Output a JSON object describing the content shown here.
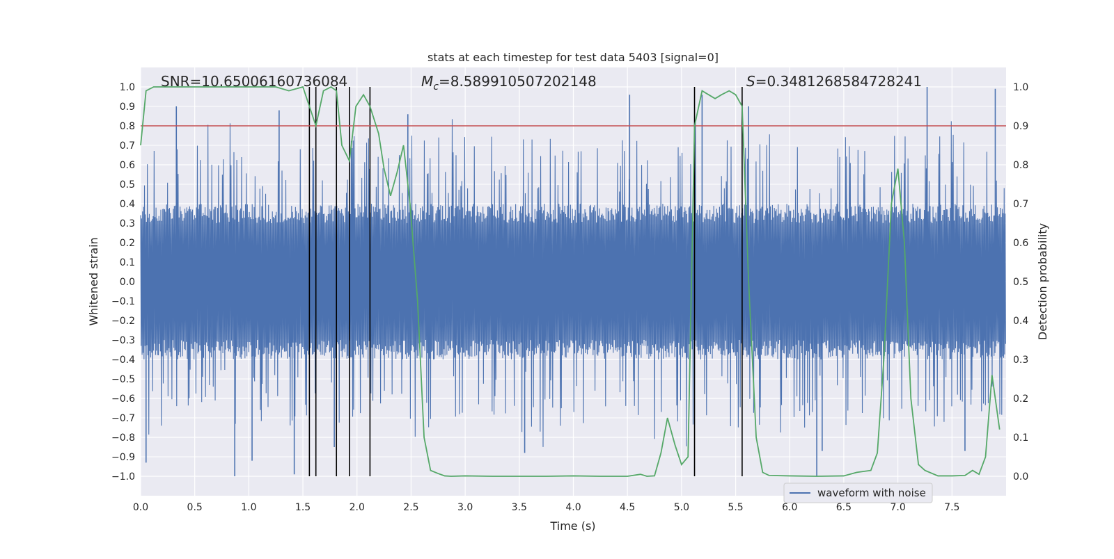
{
  "chart_data": {
    "type": "line",
    "title": "stats at each timestep for test data 5403 [signal=0]",
    "xlabel": "Time (s)",
    "ylabel_left": "Whitened strain",
    "ylabel_right": "Detection probability",
    "xlim": [
      0.0,
      8.0
    ],
    "ylim_left": [
      -1.1,
      1.1
    ],
    "ylim_right": [
      -0.05,
      1.05
    ],
    "grid": true,
    "legend_location": "lower-right",
    "x_ticks": [
      "0.0",
      "0.5",
      "1.0",
      "1.5",
      "2.0",
      "2.5",
      "3.0",
      "3.5",
      "4.0",
      "4.5",
      "5.0",
      "5.5",
      "6.0",
      "6.5",
      "7.0",
      "7.5"
    ],
    "x_tick_values": [
      0.0,
      0.5,
      1.0,
      1.5,
      2.0,
      2.5,
      3.0,
      3.5,
      4.0,
      4.5,
      5.0,
      5.5,
      6.0,
      6.5,
      7.0,
      7.5
    ],
    "y_ticks_left": [
      "1.0",
      "0.9",
      "0.8",
      "0.7",
      "0.6",
      "0.5",
      "0.4",
      "0.3",
      "0.2",
      "0.1",
      "0.0",
      "−0.1",
      "−0.2",
      "−0.3",
      "−0.4",
      "−0.5",
      "−0.6",
      "−0.7",
      "−0.8",
      "−0.9",
      "−1.0"
    ],
    "y_tick_values_left": [
      1.0,
      0.9,
      0.8,
      0.7,
      0.6,
      0.5,
      0.4,
      0.3,
      0.2,
      0.1,
      0.0,
      -0.1,
      -0.2,
      -0.3,
      -0.4,
      -0.5,
      -0.6,
      -0.7,
      -0.8,
      -0.9,
      -1.0
    ],
    "y_ticks_right": [
      "1.0",
      "0.9",
      "0.8",
      "0.7",
      "0.6",
      "0.5",
      "0.4",
      "0.3",
      "0.2",
      "0.1",
      "0.0"
    ],
    "y_tick_values_right": [
      1.0,
      0.9,
      0.8,
      0.7,
      0.6,
      0.5,
      0.4,
      0.3,
      0.2,
      0.1,
      0.0
    ],
    "annotations": {
      "snr": "SNR=10.65006160736084",
      "mc_symbol": "M",
      "mc_subscript": "c",
      "mc_value": "=8.589910507202148",
      "s_symbol": "S",
      "s_value": "=0.3481268584728241"
    },
    "threshold_line": {
      "value_right_axis": 0.9,
      "color": "#c44e52"
    },
    "event_markers_x": [
      1.56,
      1.62,
      1.81,
      1.93,
      2.12,
      5.12,
      5.56
    ],
    "series": [
      {
        "name": "waveform with noise",
        "color": "#4c72b0",
        "axis": "left",
        "description": "whitened strain noise, dense band roughly -0.4 to 0.4 with spikes up to about +/-1.0",
        "envelope_typical": 0.4,
        "spike_peaks": [
          {
            "x": 0.05,
            "y": -0.93
          },
          {
            "x": 0.33,
            "y": 0.9
          },
          {
            "x": 0.87,
            "y": -1.0
          },
          {
            "x": 1.03,
            "y": -0.92
          },
          {
            "x": 1.28,
            "y": 0.88
          },
          {
            "x": 1.42,
            "y": -0.99
          },
          {
            "x": 1.79,
            "y": -0.85
          },
          {
            "x": 2.47,
            "y": 0.86
          },
          {
            "x": 3.55,
            "y": -0.88
          },
          {
            "x": 4.52,
            "y": 0.96
          },
          {
            "x": 5.19,
            "y": 0.96
          },
          {
            "x": 5.62,
            "y": 0.9
          },
          {
            "x": 6.25,
            "y": -1.0
          },
          {
            "x": 6.3,
            "y": -0.87
          },
          {
            "x": 7.27,
            "y": 1.0
          },
          {
            "x": 7.9,
            "y": 0.99
          },
          {
            "x": 7.62,
            "y": -0.87
          }
        ]
      },
      {
        "name": "detection probability",
        "color": "#55a868",
        "axis": "right",
        "x": [
          0.0,
          0.05,
          0.12,
          0.25,
          0.5,
          0.75,
          1.0,
          1.25,
          1.37,
          1.5,
          1.56,
          1.62,
          1.69,
          1.76,
          1.81,
          1.86,
          1.93,
          1.99,
          2.06,
          2.12,
          2.2,
          2.25,
          2.31,
          2.37,
          2.43,
          2.49,
          2.56,
          2.62,
          2.68,
          2.75,
          2.81,
          2.87,
          3.0,
          3.25,
          3.5,
          3.75,
          4.0,
          4.25,
          4.5,
          4.62,
          4.68,
          4.75,
          4.81,
          4.87,
          4.94,
          5.0,
          5.06,
          5.12,
          5.19,
          5.25,
          5.31,
          5.37,
          5.44,
          5.5,
          5.56,
          5.62,
          5.69,
          5.75,
          5.81,
          6.0,
          6.25,
          6.5,
          6.62,
          6.75,
          6.81,
          6.87,
          6.94,
          7.0,
          7.06,
          7.12,
          7.19,
          7.25,
          7.37,
          7.5,
          7.62,
          7.69,
          7.75,
          7.81,
          7.87,
          7.94
        ],
        "y": [
          0.85,
          0.99,
          1.0,
          1.0,
          1.0,
          1.0,
          1.0,
          1.0,
          0.99,
          1.0,
          0.95,
          0.9,
          0.99,
          1.0,
          0.99,
          0.85,
          0.81,
          0.95,
          0.98,
          0.95,
          0.88,
          0.79,
          0.72,
          0.78,
          0.85,
          0.7,
          0.45,
          0.1,
          0.015,
          0.007,
          0.001,
          0.0,
          0.001,
          0.0,
          0.0,
          0.0,
          0.001,
          0.0,
          0.0,
          0.005,
          0.0,
          0.001,
          0.06,
          0.15,
          0.08,
          0.03,
          0.05,
          0.9,
          0.99,
          0.98,
          0.97,
          0.98,
          0.99,
          0.98,
          0.95,
          0.5,
          0.1,
          0.01,
          0.002,
          0.001,
          0.0,
          0.001,
          0.01,
          0.015,
          0.06,
          0.3,
          0.7,
          0.79,
          0.6,
          0.2,
          0.03,
          0.015,
          0.001,
          0.001,
          0.002,
          0.015,
          0.005,
          0.05,
          0.26,
          0.12
        ]
      }
    ]
  }
}
